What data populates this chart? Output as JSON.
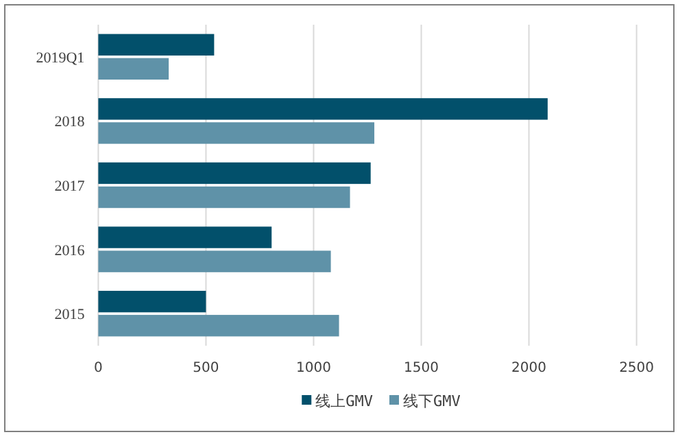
{
  "chart_data": {
    "type": "bar",
    "orientation": "horizontal",
    "categories": [
      "2019Q1",
      "2018",
      "2017",
      "2016",
      "2015"
    ],
    "series": [
      {
        "name": "线上GMV",
        "color": "#02506b",
        "values": [
          538,
          2087,
          1265,
          805,
          500
        ]
      },
      {
        "name": "线下GMV",
        "color": "#5f92a8",
        "values": [
          327,
          1282,
          1169,
          1080,
          1118
        ]
      }
    ],
    "xlim": [
      0,
      2500
    ],
    "xticks": [
      0,
      500,
      1000,
      1500,
      2000,
      2500
    ],
    "grid": "x",
    "legend": "bottom"
  }
}
